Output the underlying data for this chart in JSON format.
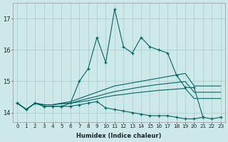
{
  "xlabel": "Humidex (Indice chaleur)",
  "bg_color": "#cce8e8",
  "line_color": "#006666",
  "grid_color": "#aacccc",
  "xlim": [
    -0.5,
    23.5
  ],
  "ylim": [
    13.7,
    17.5
  ],
  "yticks": [
    14,
    15,
    16,
    17
  ],
  "xticks": [
    0,
    1,
    2,
    3,
    4,
    5,
    6,
    7,
    8,
    9,
    10,
    11,
    12,
    13,
    14,
    15,
    16,
    17,
    18,
    19,
    20,
    21,
    22,
    23
  ],
  "series": [
    {
      "x": [
        0,
        1,
        2,
        3,
        4,
        5,
        6,
        7,
        8,
        9,
        10,
        11,
        12,
        13,
        14,
        15,
        16,
        17,
        18,
        19,
        20,
        21,
        22,
        23
      ],
      "y": [
        14.3,
        14.1,
        14.3,
        14.2,
        14.2,
        14.2,
        14.3,
        15.0,
        15.4,
        16.4,
        15.6,
        17.3,
        16.1,
        15.9,
        16.4,
        16.1,
        16.0,
        15.9,
        15.2,
        14.8,
        14.8,
        13.85,
        13.8,
        13.85
      ],
      "marker": "+"
    },
    {
      "x": [
        0,
        1,
        2,
        3,
        4,
        5,
        6,
        7,
        8,
        9,
        10,
        11,
        12,
        13,
        14,
        15,
        16,
        17,
        18,
        19,
        20,
        21
      ],
      "y": [
        14.3,
        14.1,
        14.3,
        14.2,
        14.2,
        14.2,
        14.2,
        14.25,
        14.3,
        14.35,
        14.15,
        14.1,
        14.05,
        14.0,
        13.95,
        13.9,
        13.9,
        13.9,
        13.85,
        13.8,
        13.8,
        13.85
      ],
      "marker": "+"
    },
    {
      "x": [
        0,
        1,
        2,
        3,
        4,
        5,
        6,
        7,
        8,
        9,
        10,
        11,
        12,
        13,
        14,
        15,
        16,
        17,
        18,
        19,
        20,
        21,
        22,
        23
      ],
      "y": [
        14.3,
        14.1,
        14.3,
        14.25,
        14.25,
        14.3,
        14.35,
        14.45,
        14.55,
        14.65,
        14.75,
        14.85,
        14.9,
        14.95,
        15.0,
        15.05,
        15.1,
        15.15,
        15.2,
        15.25,
        14.85,
        14.85,
        14.85,
        14.85
      ],
      "marker": null
    },
    {
      "x": [
        0,
        1,
        2,
        3,
        4,
        5,
        6,
        7,
        8,
        9,
        10,
        11,
        12,
        13,
        14,
        15,
        16,
        17,
        18,
        19,
        20,
        21,
        22,
        23
      ],
      "y": [
        14.3,
        14.1,
        14.3,
        14.25,
        14.25,
        14.3,
        14.3,
        14.38,
        14.45,
        14.52,
        14.6,
        14.67,
        14.72,
        14.77,
        14.82,
        14.86,
        14.9,
        14.93,
        14.96,
        14.99,
        14.65,
        14.65,
        14.65,
        14.65
      ],
      "marker": null
    },
    {
      "x": [
        0,
        1,
        2,
        3,
        4,
        5,
        6,
        7,
        8,
        9,
        10,
        11,
        12,
        13,
        14,
        15,
        16,
        17,
        18,
        19,
        20,
        21,
        22,
        23
      ],
      "y": [
        14.3,
        14.1,
        14.3,
        14.25,
        14.25,
        14.28,
        14.3,
        14.34,
        14.38,
        14.44,
        14.5,
        14.55,
        14.58,
        14.62,
        14.65,
        14.68,
        14.71,
        14.73,
        14.75,
        14.77,
        14.45,
        14.45,
        14.45,
        14.45
      ],
      "marker": null
    }
  ]
}
